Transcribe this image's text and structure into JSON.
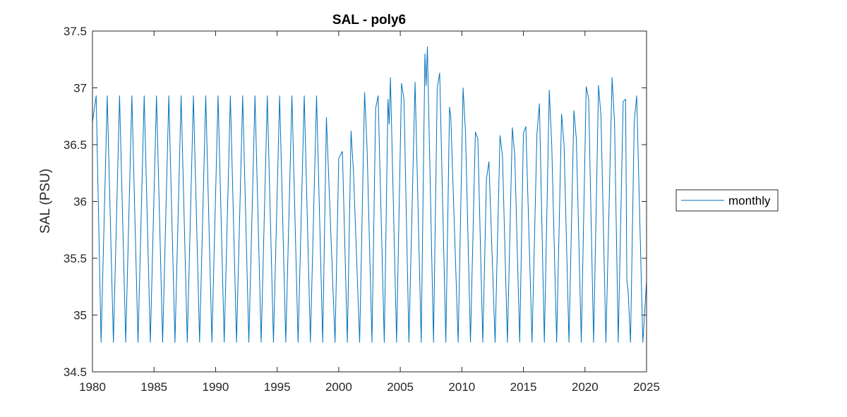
{
  "chart_data": {
    "type": "line",
    "title": "SAL - poly6",
    "xlabel": "",
    "ylabel": "SAL (PSU)",
    "xlim": [
      1980,
      2025
    ],
    "ylim": [
      34.5,
      37.5
    ],
    "xticks": [
      "1980",
      "1985",
      "1990",
      "1995",
      "2000",
      "2005",
      "2010",
      "2015",
      "2020",
      "2025"
    ],
    "yticks": [
      "34.5",
      "35",
      "35.5",
      "36",
      "36.5",
      "37",
      "37.5"
    ],
    "grid": false,
    "legend_position": "right",
    "series": [
      {
        "name": "monthly",
        "color": "#0072BD",
        "x": [
          1980.0,
          1980.3,
          1980.7,
          1981.2,
          1981.7,
          1982.2,
          1982.7,
          1983.2,
          1983.7,
          1984.2,
          1984.7,
          1985.2,
          1985.7,
          1986.2,
          1986.7,
          1987.2,
          1987.7,
          1988.2,
          1988.7,
          1989.2,
          1989.7,
          1990.2,
          1990.7,
          1991.2,
          1991.7,
          1992.2,
          1992.7,
          1993.2,
          1993.7,
          1994.2,
          1994.7,
          1995.2,
          1995.7,
          1996.2,
          1996.7,
          1997.2,
          1997.7,
          1998.2,
          1998.7,
          1999.0,
          1999.7,
          2000.0,
          2000.3,
          2000.7,
          2001.0,
          2001.2,
          2001.7,
          2002.1,
          2002.3,
          2002.7,
          2003.0,
          2003.2,
          2003.7,
          2004.0,
          2004.1,
          2004.2,
          2004.7,
          2005.1,
          2005.3,
          2005.7,
          2006.2,
          2006.7,
          2007.0,
          2007.1,
          2007.2,
          2007.7,
          2008.0,
          2008.2,
          2008.7,
          2009.0,
          2009.1,
          2009.7,
          2010.1,
          2010.3,
          2010.7,
          2011.1,
          2011.3,
          2011.7,
          2012.0,
          2012.2,
          2012.7,
          2013.1,
          2013.3,
          2013.7,
          2014.1,
          2014.3,
          2014.7,
          2015.0,
          2015.2,
          2015.7,
          2016.1,
          2016.3,
          2016.7,
          2017.1,
          2017.3,
          2017.7,
          2018.1,
          2018.3,
          2018.7,
          2019.1,
          2019.3,
          2019.7,
          2020.1,
          2020.3,
          2020.7,
          2021.1,
          2021.3,
          2021.7,
          2022.2,
          2022.4,
          2022.7,
          2023.1,
          2023.3,
          2023.4,
          2023.5,
          2023.7,
          2024.0,
          2024.2,
          2024.7,
          2025.0
        ],
        "values": [
          36.7,
          36.93,
          34.76,
          36.93,
          34.76,
          36.93,
          34.76,
          36.93,
          34.76,
          36.93,
          34.76,
          36.93,
          34.76,
          36.93,
          34.76,
          36.93,
          34.76,
          36.93,
          34.76,
          36.93,
          34.76,
          36.93,
          34.76,
          36.93,
          34.76,
          36.93,
          34.76,
          36.93,
          34.76,
          36.93,
          34.76,
          36.93,
          34.76,
          36.93,
          34.76,
          36.93,
          34.76,
          36.93,
          34.76,
          36.74,
          34.76,
          36.38,
          36.44,
          34.76,
          36.62,
          36.26,
          34.76,
          36.96,
          36.48,
          34.76,
          36.82,
          36.93,
          34.76,
          36.9,
          36.68,
          37.09,
          34.76,
          37.04,
          36.9,
          34.76,
          37.05,
          34.76,
          37.3,
          37.02,
          37.36,
          34.76,
          37.0,
          37.13,
          34.76,
          36.83,
          36.75,
          34.76,
          37.0,
          36.6,
          34.76,
          36.61,
          36.55,
          34.76,
          36.2,
          36.35,
          34.76,
          36.58,
          36.4,
          34.76,
          36.65,
          36.4,
          34.76,
          36.6,
          36.66,
          34.76,
          36.6,
          36.86,
          34.76,
          36.98,
          36.5,
          34.76,
          36.77,
          36.5,
          34.76,
          36.8,
          36.55,
          34.76,
          37.01,
          36.9,
          34.76,
          37.02,
          36.75,
          34.76,
          37.09,
          36.7,
          34.76,
          36.88,
          36.9,
          35.3,
          35.22,
          34.76,
          36.7,
          36.93,
          34.76,
          35.3
        ]
      }
    ]
  }
}
